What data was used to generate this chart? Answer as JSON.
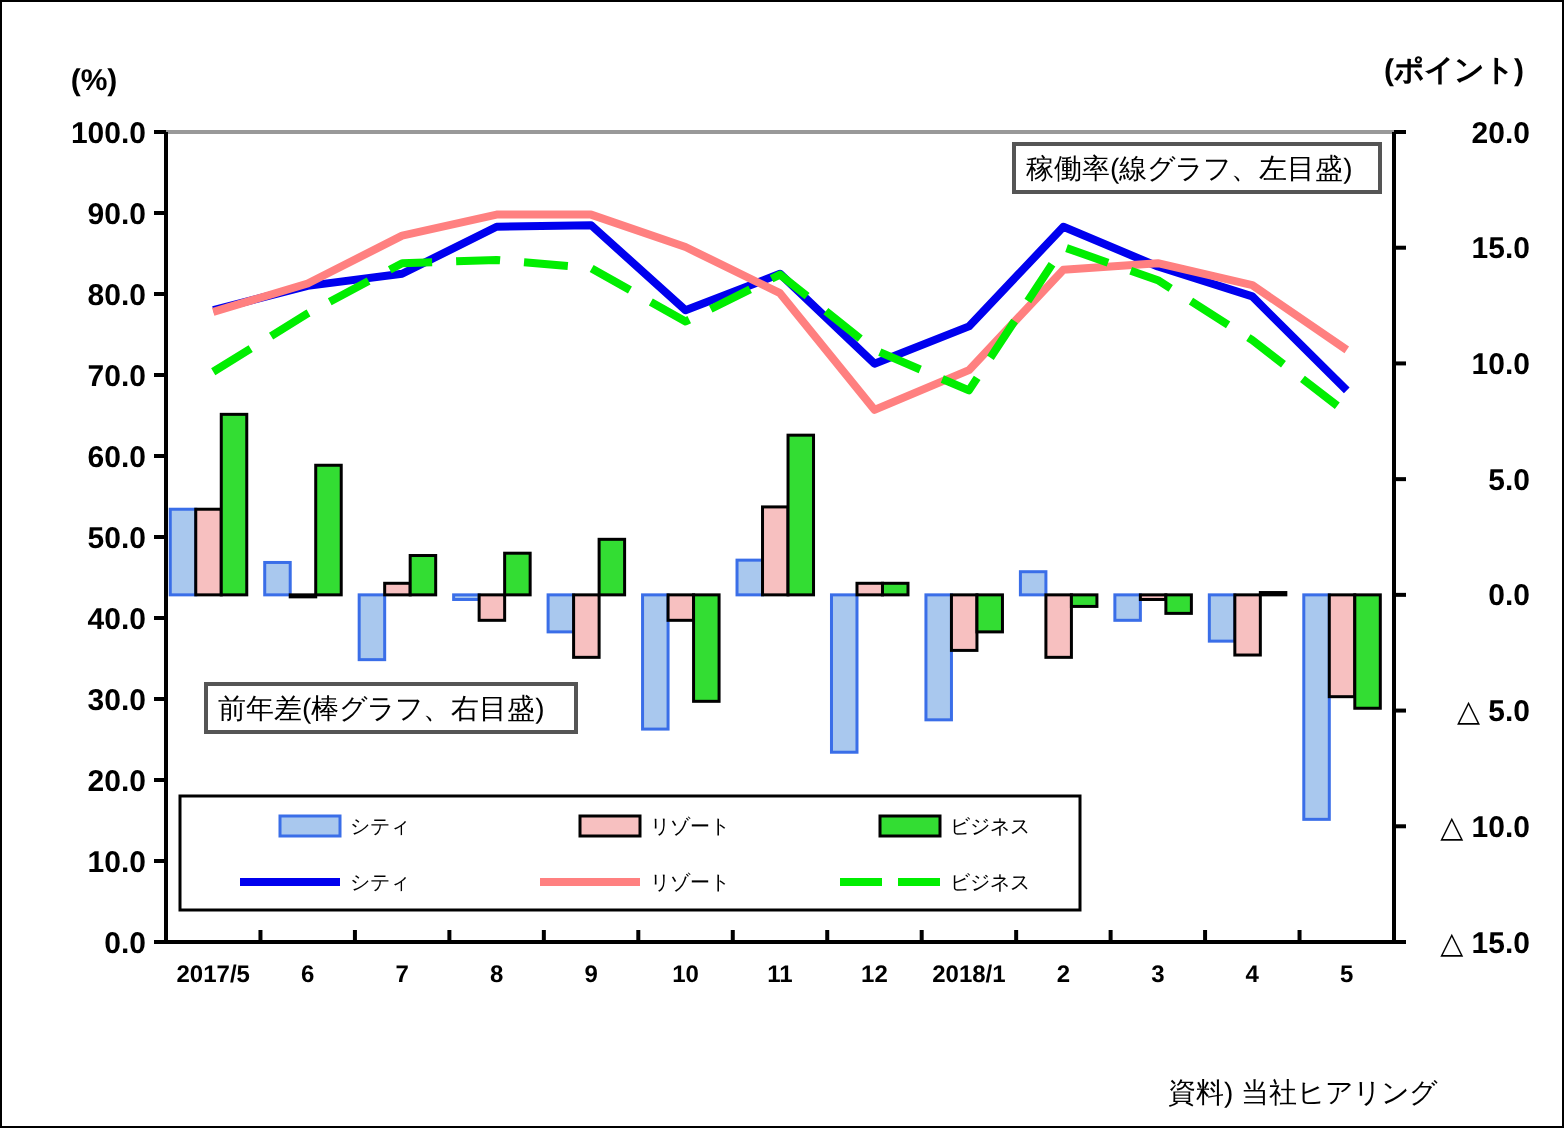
{
  "chart_data": {
    "type": "bar",
    "ylabel": "(%)",
    "y2label": "(ポイント)",
    "categories": [
      "2017/5",
      "6",
      "7",
      "8",
      "9",
      "10",
      "11",
      "12",
      "2018/1",
      "2",
      "3",
      "4",
      "5"
    ],
    "series": [
      {
        "name": "シティ",
        "axis": "y2",
        "color": "#a9c8ee",
        "values": [
          3.7,
          1.4,
          -2.8,
          -0.2,
          -1.6,
          -5.8,
          1.5,
          -6.8,
          -5.4,
          1.0,
          -1.1,
          -2.0,
          -9.7
        ]
      },
      {
        "name": "リゾート",
        "axis": "y2",
        "color": "#f7c0c0",
        "values": [
          3.7,
          0.0,
          0.5,
          -1.1,
          -2.7,
          -1.1,
          3.8,
          0.5,
          -2.4,
          -2.7,
          -0.2,
          -2.6,
          -4.4
        ]
      },
      {
        "name": "ビジネス",
        "axis": "y2",
        "color": "#33dd33",
        "values": [
          7.8,
          5.6,
          1.7,
          1.8,
          2.4,
          -4.6,
          6.9,
          0.5,
          -1.6,
          -0.5,
          -0.8,
          0.1,
          -4.9
        ]
      },
      {
        "name": "シティ",
        "type": "line",
        "axis": "y",
        "color": "#0000ee",
        "line_style": "solid",
        "values": [
          78.0,
          81.0,
          82.5,
          88.3,
          88.5,
          78.0,
          82.5,
          71.4,
          76.0,
          88.3,
          83.4,
          79.7,
          68.1
        ]
      },
      {
        "name": "リゾート",
        "type": "line",
        "axis": "y",
        "color": "#ff8080",
        "line_style": "solid",
        "values": [
          77.8,
          81.3,
          87.2,
          89.8,
          89.8,
          85.8,
          80.1,
          65.7,
          70.6,
          83.0,
          83.8,
          81.1,
          73.1
        ]
      },
      {
        "name": "ビジネス",
        "type": "line",
        "axis": "y",
        "color": "#00ee00",
        "line_style": "dashed",
        "values": [
          70.4,
          77.6,
          83.8,
          84.2,
          83.2,
          76.6,
          82.4,
          73.1,
          68.1,
          85.8,
          81.7,
          74.3,
          65.3
        ]
      }
    ],
    "ylim": [
      0,
      100
    ],
    "yticks": [
      {
        "value": 0,
        "label": "0.0"
      },
      {
        "value": 10,
        "label": "10.0"
      },
      {
        "value": 20,
        "label": "20.0"
      },
      {
        "value": 30,
        "label": "30.0"
      },
      {
        "value": 40,
        "label": "40.0"
      },
      {
        "value": 50,
        "label": "50.0"
      },
      {
        "value": 60,
        "label": "60.0"
      },
      {
        "value": 70,
        "label": "70.0"
      },
      {
        "value": 80,
        "label": "80.0"
      },
      {
        "value": 90,
        "label": "90.0"
      },
      {
        "value": 100,
        "label": "100.0"
      }
    ],
    "y2lim": [
      -15,
      20
    ],
    "y2ticks": [
      {
        "value": 20,
        "label": "20.0"
      },
      {
        "value": 15,
        "label": "15.0"
      },
      {
        "value": 10,
        "label": "10.0"
      },
      {
        "value": 5,
        "label": "5.0"
      },
      {
        "value": 0,
        "label": "0.0"
      },
      {
        "value": -5,
        "label": "△ 5.0"
      },
      {
        "value": -10,
        "label": "△ 10.0"
      },
      {
        "value": -15,
        "label": "△ 15.0"
      }
    ],
    "legend": "bottom left",
    "grid": false,
    "annotations": [
      "稼働率(線グラフ、左目盛)",
      "前年差(棒グラフ、右目盛)",
      "資料) 当社ヒアリング"
    ]
  }
}
